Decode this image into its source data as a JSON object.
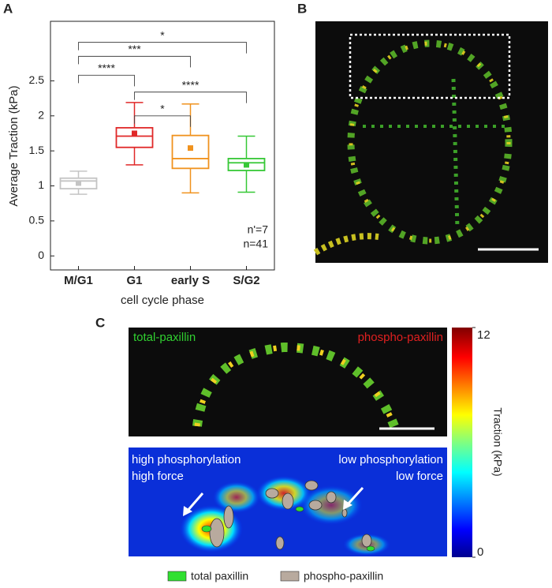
{
  "chart_data": {
    "type": "box",
    "y_label": "Average Traction (kPa)",
    "x_label": "cell cycle phase",
    "categories": [
      "M/G1",
      "G1",
      "early S",
      "S/G2"
    ],
    "colors": [
      "#c4c4c4",
      "#e02828",
      "#f0921e",
      "#36c836"
    ],
    "whisker_low": [
      0.88,
      1.3,
      0.9,
      0.91
    ],
    "q1": [
      0.96,
      1.55,
      1.25,
      1.22
    ],
    "median": [
      1.07,
      1.71,
      1.39,
      1.33
    ],
    "q3": [
      1.11,
      1.83,
      1.72,
      1.39
    ],
    "whisker_high": [
      1.21,
      2.19,
      2.17,
      1.71
    ],
    "mean": [
      1.04,
      1.75,
      1.54,
      1.3
    ],
    "ylim": [
      -0.2,
      3.35
    ],
    "yticks": [
      0,
      0.5,
      1.0,
      1.5,
      2.0,
      2.5
    ],
    "brackets": [
      {
        "pair": [
          "M/G1",
          "S/G2"
        ],
        "y": 3.05,
        "label": "*"
      },
      {
        "pair": [
          "M/G1",
          "early S"
        ],
        "y": 2.85,
        "label": "***"
      },
      {
        "pair": [
          "M/G1",
          "G1"
        ],
        "y": 2.58,
        "label": "****"
      },
      {
        "pair": [
          "G1",
          "S/G2"
        ],
        "y": 2.34,
        "label": "****"
      },
      {
        "pair": [
          "G1",
          "early S"
        ],
        "y": 2.0,
        "label": "*"
      }
    ],
    "annotations": [
      "n'=7",
      "n=41"
    ]
  },
  "figure": {
    "panels": [
      "A",
      "B",
      "C"
    ],
    "image_labels": [
      "total-paxillin",
      "phospho-paxillin"
    ],
    "heatmap_labels": [
      "high phosphorylation",
      "high force",
      "low phosphorylation",
      "low force"
    ],
    "legend": [
      "total paxillin",
      "phospho-paxillin"
    ],
    "colorbar": {
      "label": "Traction (kPa)",
      "lim": [
        0,
        12
      ],
      "ticks": [
        0,
        12
      ]
    }
  }
}
